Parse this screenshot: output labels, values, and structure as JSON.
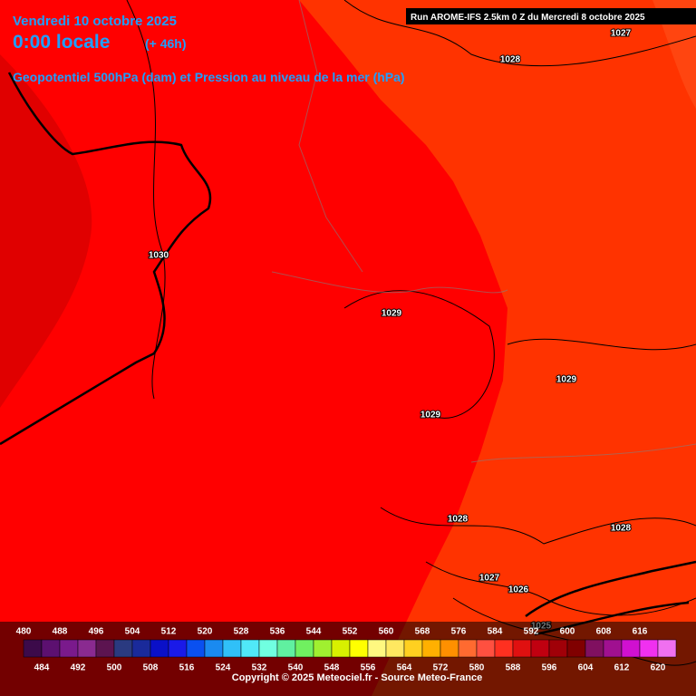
{
  "header": {
    "date": "Vendredi 10 octobre 2025",
    "time": "0:00 locale",
    "lead": "(+ 46h)",
    "parameter": "Geopotentiel 500hPa (dam) et Pression au niveau de la mer (hPa)",
    "run": "Run AROME-IFS 2.5km 0 Z du Mercredi 8 octobre 2025"
  },
  "isobar_labels": [
    "1027",
    "1028",
    "1030",
    "1029",
    "1029",
    "1029",
    "1028",
    "1028",
    "1027",
    "1026",
    "1025"
  ],
  "colorbar": {
    "ticks": [
      480,
      484,
      488,
      492,
      496,
      500,
      504,
      508,
      512,
      516,
      520,
      524,
      528,
      532,
      536,
      540,
      544,
      548,
      552,
      556,
      560,
      564,
      568,
      572,
      576,
      580,
      584,
      588,
      592,
      596,
      600,
      604,
      608,
      612,
      616,
      620
    ],
    "colors": [
      "#3c0a4a",
      "#5c1070",
      "#7a1a8c",
      "#8a2a90",
      "#5c1450",
      "#2a3a80",
      "#1a2a9a",
      "#0a10c8",
      "#1a1ae8",
      "#0a50f0",
      "#1a8af0",
      "#30c0f8",
      "#50e8f8",
      "#70ffe0",
      "#60f0a0",
      "#70f060",
      "#a0f030",
      "#d8f000",
      "#ffff00",
      "#fff880",
      "#ffe860",
      "#ffd020",
      "#ffb000",
      "#ff9000",
      "#ff6a30",
      "#ff5040",
      "#ff3020",
      "#e01010",
      "#c00010",
      "#a00008",
      "#800000",
      "#801060",
      "#a01090",
      "#d010d0",
      "#f030f0",
      "#f070f0"
    ]
  },
  "footer": {
    "copyright": "Copyright © 2025 Meteociel.fr - Source Meteo-France"
  }
}
